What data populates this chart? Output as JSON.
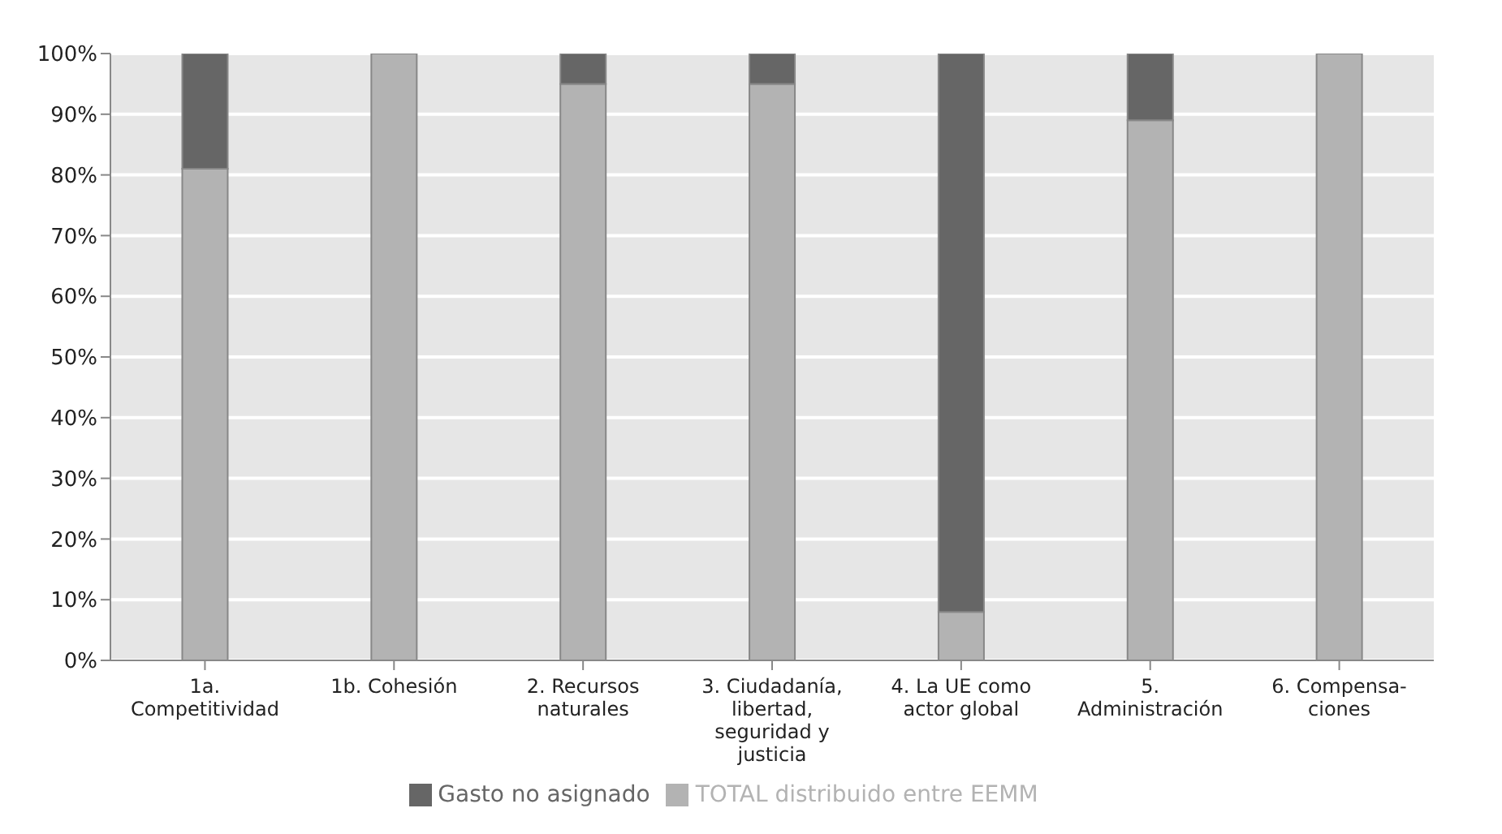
{
  "chart_data": {
    "type": "bar",
    "stacked": true,
    "categories": [
      "1a. Competitividad",
      "1b. Cohesión",
      "2. Recursos naturales",
      "3. Ciudadanía, libertad, seguridad y justicia",
      "4. La UE como actor global",
      "5. Administración",
      "6. Compensa-ciones"
    ],
    "series": [
      {
        "name": "TOTAL distribuido entre EEMM",
        "color": "#b3b3b3",
        "values": [
          81,
          100,
          95,
          95,
          8,
          89,
          100
        ]
      },
      {
        "name": "Gasto no asignado",
        "color": "#666666",
        "values": [
          19,
          0,
          5,
          5,
          92,
          11,
          0
        ]
      }
    ],
    "ylim": [
      0,
      100
    ],
    "yticks": [
      {
        "value": 0,
        "label": "0%"
      },
      {
        "value": 10,
        "label": "10%"
      },
      {
        "value": 20,
        "label": "20%"
      },
      {
        "value": 30,
        "label": "30%"
      },
      {
        "value": 40,
        "label": "40%"
      },
      {
        "value": 50,
        "label": "50%"
      },
      {
        "value": 60,
        "label": "60%"
      },
      {
        "value": 70,
        "label": "70%"
      },
      {
        "value": 80,
        "label": "80%"
      },
      {
        "value": 90,
        "label": "90%"
      },
      {
        "value": 100,
        "label": "100%"
      }
    ],
    "grid": "y",
    "legend": "bottom"
  }
}
